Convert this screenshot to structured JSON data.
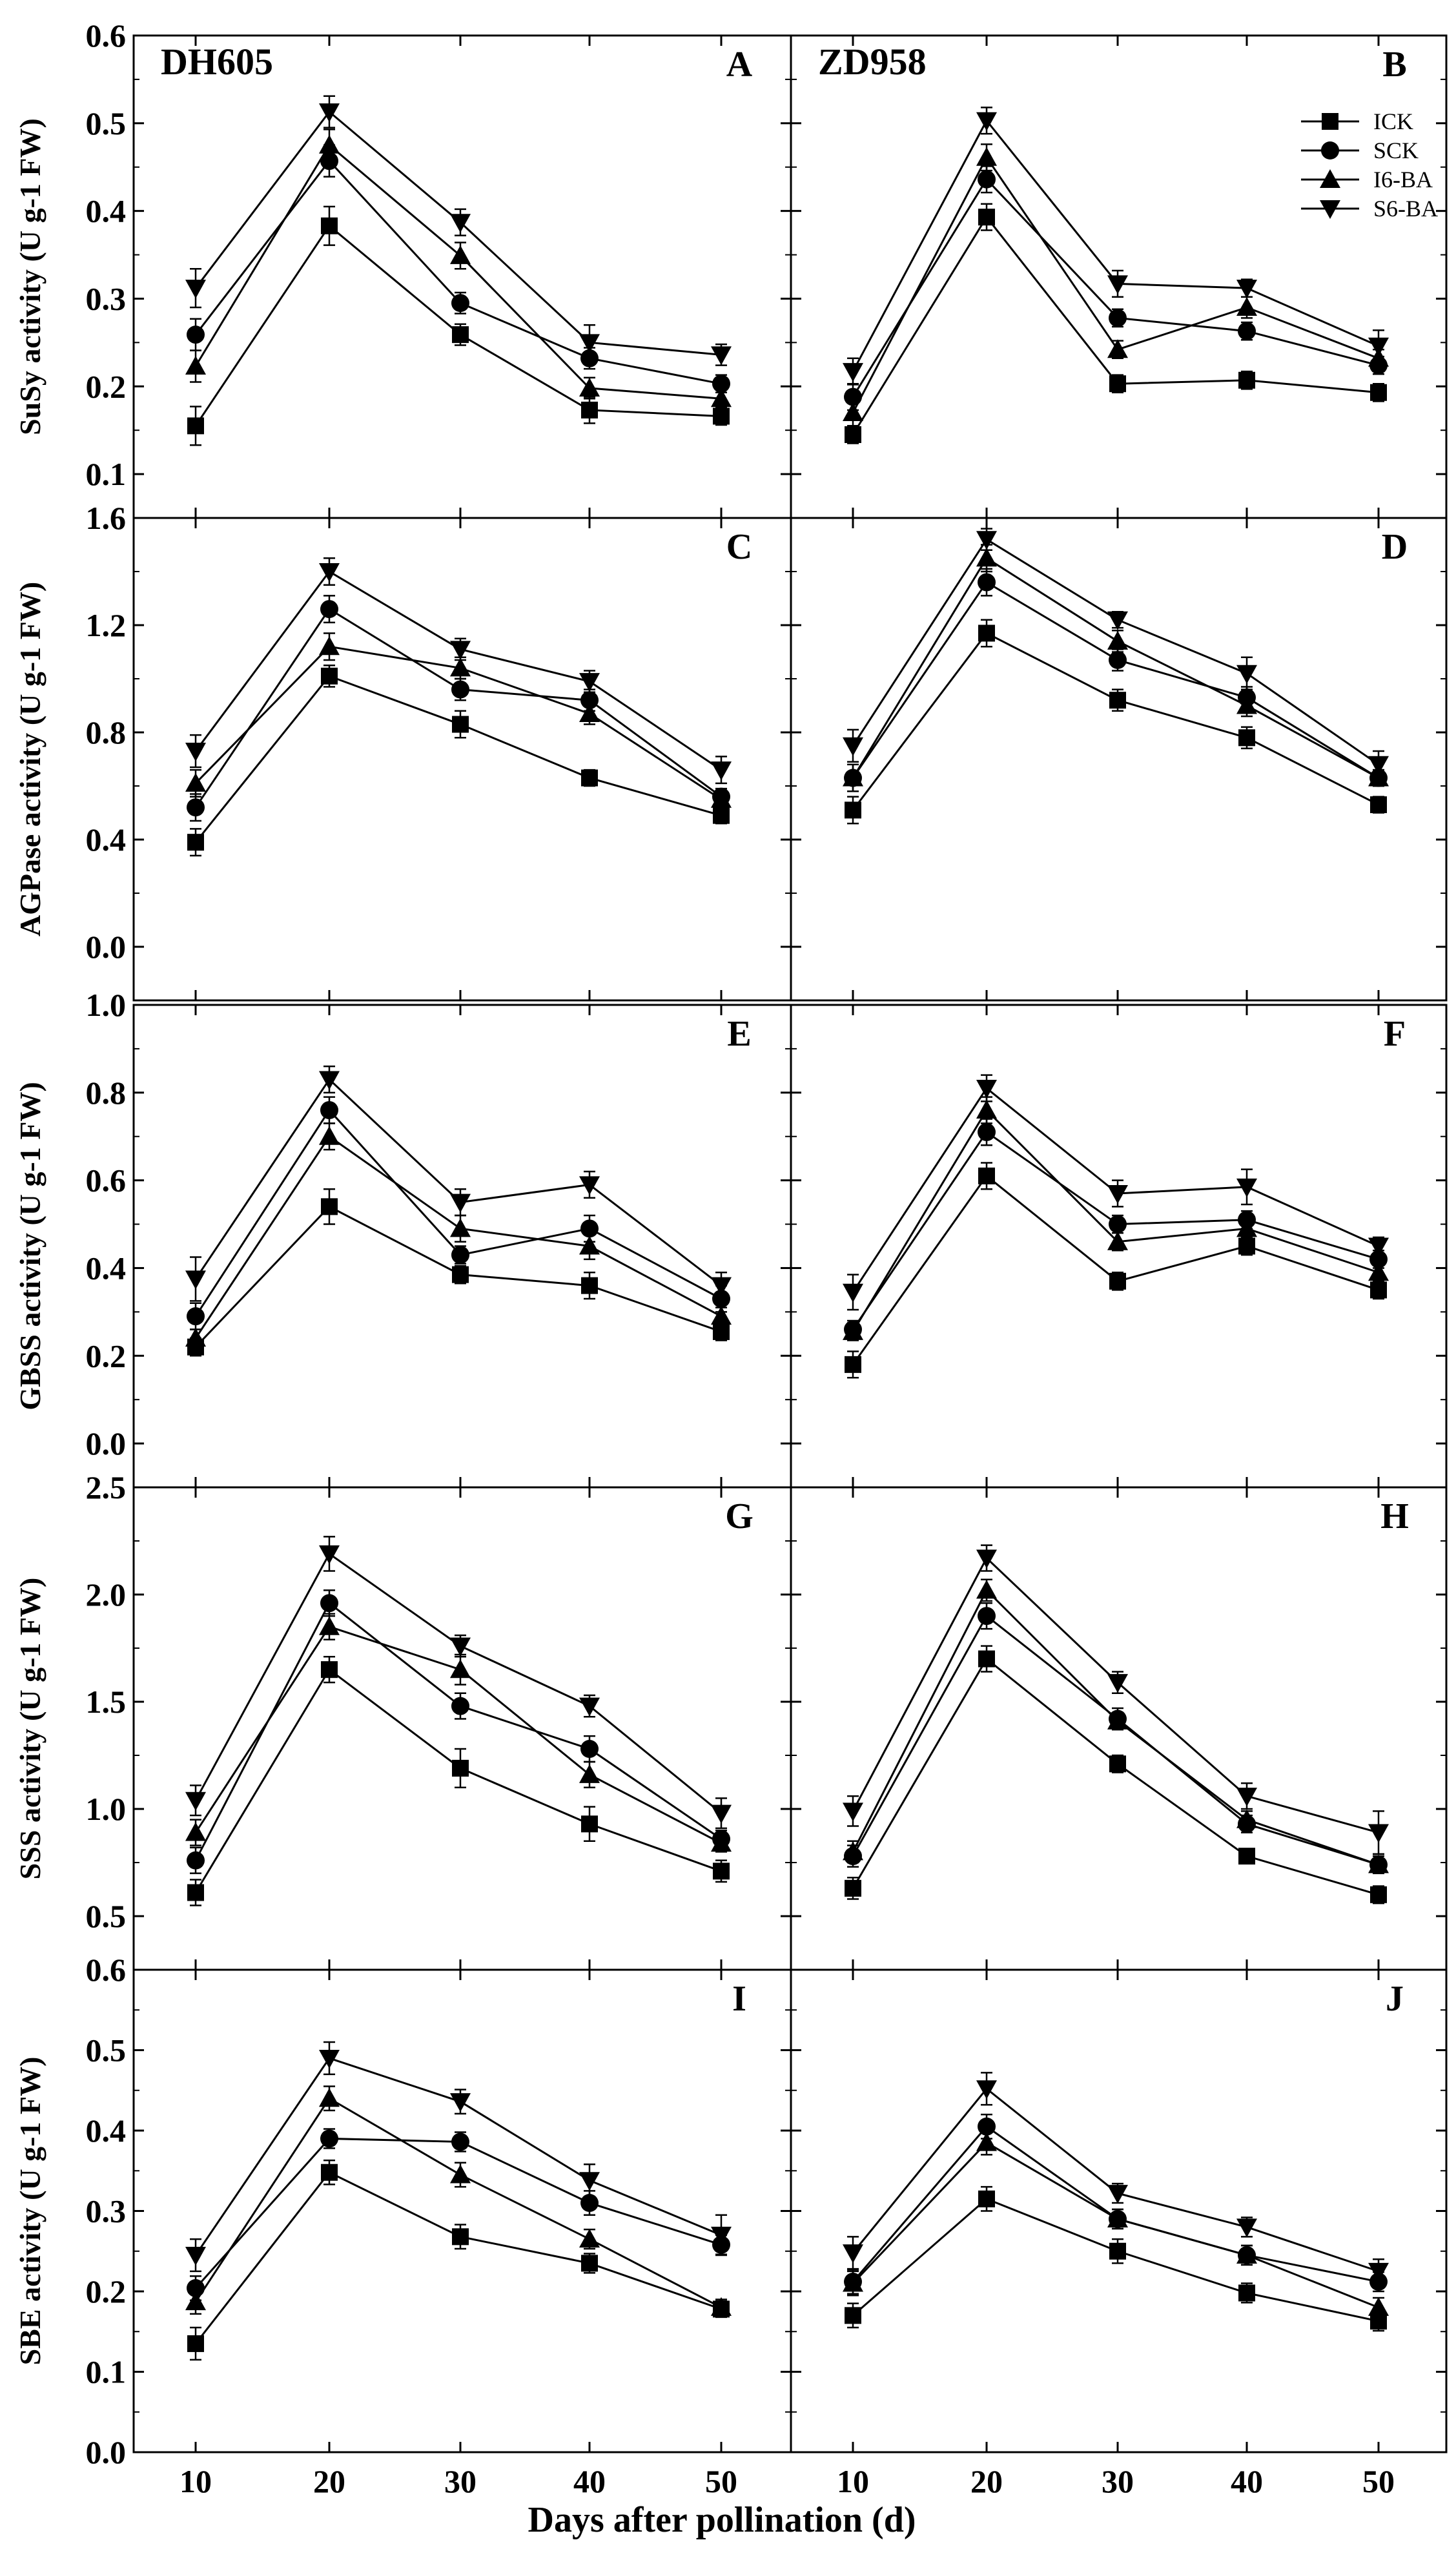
{
  "figure": {
    "xlabel": "Days after pollination (d)",
    "x_ticks": [
      "10",
      "20",
      "30",
      "40",
      "50"
    ],
    "cultivars": [
      "DH605",
      "ZD958"
    ]
  },
  "legend": {
    "position": "top-right of panel B",
    "entries": [
      {
        "label": "ICK",
        "marker": "square"
      },
      {
        "label": "SCK",
        "marker": "circle"
      },
      {
        "label": "I6-BA",
        "marker": "triangle-up"
      },
      {
        "label": "S6-BA",
        "marker": "triangle-down"
      }
    ]
  },
  "chart_data": [
    {
      "type": "line",
      "title": "SuSy activity",
      "ylabel": "SuSy activity (U g-1 FW)",
      "ylim": [
        0.05,
        0.6
      ],
      "yticks": [
        "0.1",
        "0.2",
        "0.3",
        "0.4",
        "0.5",
        "0.6"
      ],
      "x": [
        10,
        20,
        30,
        40,
        50
      ],
      "panels": [
        {
          "letter": "A",
          "cultivar": "DH605",
          "series": [
            {
              "name": "ICK",
              "values": [
                0.155,
                0.383,
                0.259,
                0.173,
                0.166
              ],
              "err": [
                0.022,
                0.022,
                0.012,
                0.015,
                0.01
              ]
            },
            {
              "name": "SCK",
              "values": [
                0.259,
                0.457,
                0.295,
                0.232,
                0.203
              ],
              "err": [
                0.018,
                0.018,
                0.012,
                0.012,
                0.01
              ]
            },
            {
              "name": "I6-BA",
              "values": [
                0.223,
                0.475,
                0.349,
                0.198,
                0.186
              ],
              "err": [
                0.018,
                0.018,
                0.015,
                0.012,
                0.01
              ]
            },
            {
              "name": "S6-BA",
              "values": [
                0.312,
                0.513,
                0.387,
                0.25,
                0.236
              ],
              "err": [
                0.022,
                0.018,
                0.015,
                0.02,
                0.012
              ]
            }
          ]
        },
        {
          "letter": "B",
          "cultivar": "ZD958",
          "series": [
            {
              "name": "ICK",
              "values": [
                0.145,
                0.393,
                0.203,
                0.207,
                0.193
              ],
              "err": [
                0.01,
                0.015,
                0.01,
                0.01,
                0.01
              ]
            },
            {
              "name": "SCK",
              "values": [
                0.188,
                0.436,
                0.278,
                0.263,
                0.224
              ],
              "err": [
                0.015,
                0.015,
                0.01,
                0.01,
                0.01
              ]
            },
            {
              "name": "I6-BA",
              "values": [
                0.17,
                0.461,
                0.242,
                0.29,
                0.232
              ],
              "err": [
                0.015,
                0.015,
                0.01,
                0.012,
                0.01
              ]
            },
            {
              "name": "S6-BA",
              "values": [
                0.217,
                0.503,
                0.317,
                0.312,
                0.246
              ],
              "err": [
                0.015,
                0.015,
                0.015,
                0.01,
                0.018
              ]
            }
          ]
        }
      ]
    },
    {
      "type": "line",
      "title": "AGPase activity",
      "ylabel": "AGPase activity (U g-1 FW)",
      "ylim": [
        -0.2,
        1.6
      ],
      "yticks": [
        "0.0",
        "0.4",
        "0.8",
        "1.2",
        "1.6"
      ],
      "x": [
        10,
        20,
        30,
        40,
        50
      ],
      "panels": [
        {
          "letter": "C",
          "cultivar": "DH605",
          "series": [
            {
              "name": "ICK",
              "values": [
                0.39,
                1.01,
                0.83,
                0.63,
                0.49
              ],
              "err": [
                0.05,
                0.04,
                0.05,
                0.03,
                0.03
              ]
            },
            {
              "name": "SCK",
              "values": [
                0.52,
                1.26,
                0.96,
                0.92,
                0.56
              ],
              "err": [
                0.05,
                0.05,
                0.04,
                0.04,
                0.03
              ]
            },
            {
              "name": "I6-BA",
              "values": [
                0.61,
                1.12,
                1.04,
                0.87,
                0.55
              ],
              "err": [
                0.05,
                0.05,
                0.04,
                0.04,
                0.03
              ]
            },
            {
              "name": "S6-BA",
              "values": [
                0.73,
                1.4,
                1.11,
                0.99,
                0.66
              ],
              "err": [
                0.06,
                0.05,
                0.04,
                0.04,
                0.05
              ]
            }
          ]
        },
        {
          "letter": "D",
          "cultivar": "ZD958",
          "series": [
            {
              "name": "ICK",
              "values": [
                0.51,
                1.17,
                0.92,
                0.78,
                0.53
              ],
              "err": [
                0.05,
                0.05,
                0.04,
                0.04,
                0.03
              ]
            },
            {
              "name": "SCK",
              "values": [
                0.63,
                1.36,
                1.07,
                0.93,
                0.63
              ],
              "err": [
                0.05,
                0.05,
                0.04,
                0.04,
                0.03
              ]
            },
            {
              "name": "I6-BA",
              "values": [
                0.63,
                1.45,
                1.14,
                0.9,
                0.63
              ],
              "err": [
                0.05,
                0.05,
                0.04,
                0.04,
                0.03
              ]
            },
            {
              "name": "S6-BA",
              "values": [
                0.75,
                1.52,
                1.22,
                1.02,
                0.68
              ],
              "err": [
                0.06,
                0.04,
                0.03,
                0.06,
                0.05
              ]
            }
          ]
        }
      ]
    },
    {
      "type": "line",
      "title": "GBSS activity",
      "ylabel": "GBSS activity (U g-1 FW)",
      "ylim": [
        -0.1,
        1.0
      ],
      "yticks": [
        "0.0",
        "0.2",
        "0.4",
        "0.6",
        "0.8",
        "1.0"
      ],
      "x": [
        10,
        20,
        30,
        40,
        50
      ],
      "panels": [
        {
          "letter": "E",
          "cultivar": "DH605",
          "series": [
            {
              "name": "ICK",
              "values": [
                0.22,
                0.54,
                0.385,
                0.36,
                0.255
              ],
              "err": [
                0.02,
                0.04,
                0.02,
                0.03,
                0.02
              ]
            },
            {
              "name": "SCK",
              "values": [
                0.29,
                0.76,
                0.43,
                0.49,
                0.33
              ],
              "err": [
                0.03,
                0.03,
                0.02,
                0.03,
                0.03
              ]
            },
            {
              "name": "I6-BA",
              "values": [
                0.24,
                0.7,
                0.49,
                0.45,
                0.29
              ],
              "err": [
                0.02,
                0.03,
                0.03,
                0.03,
                0.02
              ]
            },
            {
              "name": "S6-BA",
              "values": [
                0.375,
                0.83,
                0.55,
                0.59,
                0.36
              ],
              "err": [
                0.05,
                0.03,
                0.03,
                0.03,
                0.03
              ]
            }
          ]
        },
        {
          "letter": "F",
          "cultivar": "ZD958",
          "series": [
            {
              "name": "ICK",
              "values": [
                0.18,
                0.61,
                0.37,
                0.45,
                0.35
              ],
              "err": [
                0.03,
                0.03,
                0.02,
                0.02,
                0.02
              ]
            },
            {
              "name": "SCK",
              "values": [
                0.26,
                0.71,
                0.5,
                0.51,
                0.42
              ],
              "err": [
                0.02,
                0.03,
                0.02,
                0.02,
                0.02
              ]
            },
            {
              "name": "I6-BA",
              "values": [
                0.255,
                0.76,
                0.46,
                0.49,
                0.39
              ],
              "err": [
                0.02,
                0.03,
                0.02,
                0.02,
                0.02
              ]
            },
            {
              "name": "S6-BA",
              "values": [
                0.345,
                0.81,
                0.57,
                0.585,
                0.45
              ],
              "err": [
                0.04,
                0.03,
                0.03,
                0.04,
                0.02
              ]
            }
          ]
        }
      ]
    },
    {
      "type": "line",
      "title": "SSS activity",
      "ylabel": "SSS activity (U g-1 FW)",
      "ylim": [
        0.25,
        2.5
      ],
      "yticks": [
        "0.5",
        "1.0",
        "1.5",
        "2.0",
        "2.5"
      ],
      "x": [
        10,
        20,
        30,
        40,
        50
      ],
      "panels": [
        {
          "letter": "G",
          "cultivar": "DH605",
          "series": [
            {
              "name": "ICK",
              "values": [
                0.61,
                1.65,
                1.19,
                0.93,
                0.71
              ],
              "err": [
                0.06,
                0.06,
                0.09,
                0.08,
                0.05
              ]
            },
            {
              "name": "SCK",
              "values": [
                0.76,
                1.96,
                1.48,
                1.28,
                0.86
              ],
              "err": [
                0.06,
                0.06,
                0.06,
                0.06,
                0.04
              ]
            },
            {
              "name": "I6-BA",
              "values": [
                0.89,
                1.85,
                1.65,
                1.16,
                0.84
              ],
              "err": [
                0.06,
                0.06,
                0.07,
                0.06,
                0.04
              ]
            },
            {
              "name": "S6-BA",
              "values": [
                1.04,
                2.19,
                1.76,
                1.48,
                0.98
              ],
              "err": [
                0.07,
                0.08,
                0.05,
                0.05,
                0.07
              ]
            }
          ]
        },
        {
          "letter": "H",
          "cultivar": "ZD958",
          "series": [
            {
              "name": "ICK",
              "values": [
                0.63,
                1.7,
                1.21,
                0.78,
                0.6
              ],
              "err": [
                0.05,
                0.06,
                0.04,
                0.03,
                0.04
              ]
            },
            {
              "name": "SCK",
              "values": [
                0.78,
                1.9,
                1.42,
                0.93,
                0.74
              ],
              "err": [
                0.05,
                0.06,
                0.05,
                0.04,
                0.04
              ]
            },
            {
              "name": "I6-BA",
              "values": [
                0.8,
                2.02,
                1.41,
                0.95,
                0.74
              ],
              "err": [
                0.05,
                0.05,
                0.04,
                0.04,
                0.04
              ]
            },
            {
              "name": "S6-BA",
              "values": [
                0.99,
                2.17,
                1.59,
                1.06,
                0.89
              ],
              "err": [
                0.07,
                0.06,
                0.05,
                0.06,
                0.1
              ]
            }
          ]
        }
      ]
    },
    {
      "type": "line",
      "title": "SBE activity",
      "ylabel": "SBE activity (U g-1 FW)",
      "ylim": [
        0.0,
        0.6
      ],
      "yticks": [
        "0.0",
        "0.1",
        "0.2",
        "0.3",
        "0.4",
        "0.5",
        "0.6"
      ],
      "x": [
        10,
        20,
        30,
        40,
        50
      ],
      "panels": [
        {
          "letter": "I",
          "cultivar": "DH605",
          "series": [
            {
              "name": "ICK",
              "values": [
                0.135,
                0.348,
                0.268,
                0.235,
                0.178
              ],
              "err": [
                0.02,
                0.015,
                0.015,
                0.012,
                0.01
              ]
            },
            {
              "name": "SCK",
              "values": [
                0.204,
                0.39,
                0.386,
                0.31,
                0.258
              ],
              "err": [
                0.015,
                0.012,
                0.012,
                0.015,
                0.012
              ]
            },
            {
              "name": "I6-BA",
              "values": [
                0.187,
                0.44,
                0.345,
                0.265,
                0.18
              ],
              "err": [
                0.015,
                0.015,
                0.015,
                0.012,
                0.01
              ]
            },
            {
              "name": "S6-BA",
              "values": [
                0.245,
                0.49,
                0.436,
                0.338,
                0.27
              ],
              "err": [
                0.02,
                0.02,
                0.015,
                0.02,
                0.025
              ]
            }
          ]
        },
        {
          "letter": "J",
          "cultivar": "ZD958",
          "series": [
            {
              "name": "ICK",
              "values": [
                0.17,
                0.315,
                0.25,
                0.198,
                0.163
              ],
              "err": [
                0.015,
                0.015,
                0.015,
                0.012,
                0.012
              ]
            },
            {
              "name": "SCK",
              "values": [
                0.212,
                0.405,
                0.29,
                0.245,
                0.212
              ],
              "err": [
                0.015,
                0.015,
                0.012,
                0.012,
                0.012
              ]
            },
            {
              "name": "I6-BA",
              "values": [
                0.21,
                0.385,
                0.29,
                0.245,
                0.18
              ],
              "err": [
                0.015,
                0.015,
                0.012,
                0.012,
                0.012
              ]
            },
            {
              "name": "S6-BA",
              "values": [
                0.248,
                0.452,
                0.322,
                0.28,
                0.225
              ],
              "err": [
                0.02,
                0.02,
                0.012,
                0.012,
                0.015
              ]
            }
          ]
        }
      ]
    }
  ]
}
